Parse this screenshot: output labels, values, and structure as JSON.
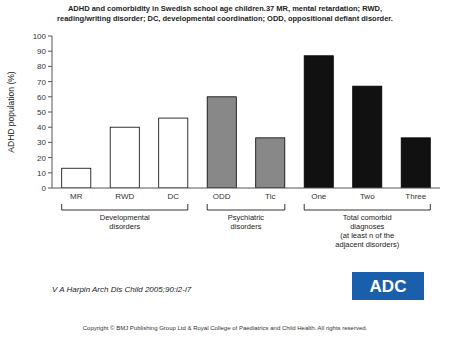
{
  "chart_data": {
    "type": "bar",
    "title": "ADHD and comorbidity in Swedish school age children.37 MR, mental retardation; RWD,\nreading/writing disorder; DC, developmental coordination; ODD, oppositional defiant disorder.",
    "y_label": "ADHD population (%)",
    "categories": [
      "MR",
      "RWD",
      "DC",
      "ODD",
      "Tic",
      "One",
      "Two",
      "Three"
    ],
    "values": [
      13,
      40,
      46,
      60,
      33,
      87,
      67,
      33
    ],
    "colors": [
      "white",
      "white",
      "white",
      "#888888",
      "#888888",
      "#111111",
      "#111111",
      "#111111"
    ],
    "ylim": [
      0,
      100
    ],
    "yticks": [
      0,
      10,
      20,
      30,
      40,
      50,
      60,
      70,
      80,
      90,
      100
    ],
    "grid": false,
    "groups": [
      {
        "label": "Developmental\ndisorders",
        "categories": [
          "MR",
          "RWD",
          "DC"
        ]
      },
      {
        "label": "Psychiatric\ndisorders",
        "categories": [
          "ODD",
          "Tic"
        ]
      },
      {
        "label": "Total comorbid\ndiagnoses\n(at least n of the\nadjacent disorders)",
        "categories": [
          "One",
          "Two",
          "Three"
        ]
      }
    ],
    "annotations": [
      "V A Harpin Arch Dis Child 2005;90:i2-i7",
      "Copyright © BMJ Publishing Group Ltd & Royal College of Paediatrics and Child Health. All rights reserved.",
      "ADC"
    ]
  }
}
